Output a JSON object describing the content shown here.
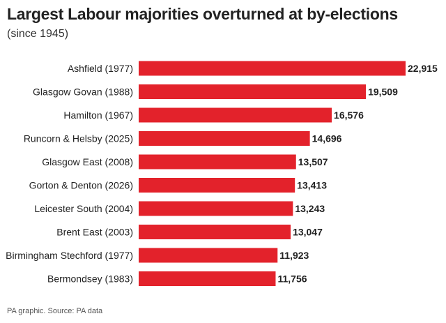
{
  "chart_data": {
    "type": "bar",
    "orientation": "horizontal",
    "title": "Largest Labour majorities overturned at by-elections",
    "subtitle": "(since 1945)",
    "categories": [
      "Ashfield (1977)",
      "Glasgow Govan (1988)",
      "Hamilton (1967)",
      "Runcorn & Helsby (2025)",
      "Glasgow East (2008)",
      "Gorton & Denton (2026)",
      "Leicester South (2004)",
      "Brent East (2003)",
      "Birmingham Stechford (1977)",
      "Bermondsey (1983)"
    ],
    "values": [
      22915,
      19509,
      16576,
      14696,
      13507,
      13413,
      13243,
      13047,
      11923,
      11756
    ],
    "value_labels": [
      "22,915",
      "19,509",
      "16,576",
      "14,696",
      "13,507",
      "13,413",
      "13,243",
      "13,047",
      "11,923",
      "11,756"
    ],
    "xlim": [
      0,
      22915
    ],
    "bar_color": "#e3222b",
    "grid": false,
    "xlabel": "",
    "ylabel": ""
  },
  "footer": {
    "source": "PA graphic. Source: PA data"
  }
}
